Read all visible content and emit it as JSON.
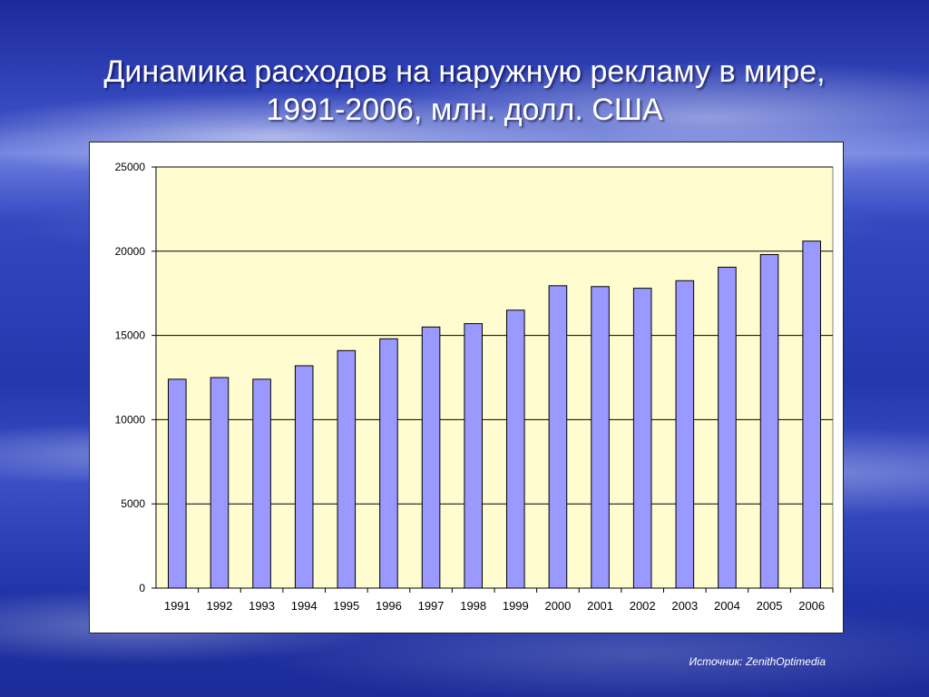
{
  "slide": {
    "title_line1": "Динамика расходов на наружную рекламу в мире,",
    "title_line2": "1991-2006, млн. долл. США",
    "source": "Источник: ZenithOptimedia"
  },
  "colors": {
    "plot_background": "#fffdd0",
    "bar_fill": "#9999ff",
    "bar_stroke": "#000000"
  },
  "chart_data": {
    "type": "bar",
    "title": "",
    "xlabel": "",
    "ylabel": "",
    "categories": [
      "1991",
      "1992",
      "1993",
      "1994",
      "1995",
      "1996",
      "1997",
      "1998",
      "1999",
      "2000",
      "2001",
      "2002",
      "2003",
      "2004",
      "2005",
      "2006"
    ],
    "values": [
      12400,
      12500,
      12400,
      13200,
      14100,
      14800,
      15500,
      15700,
      16500,
      17950,
      17900,
      17800,
      18250,
      19050,
      19800,
      20600
    ],
    "ylim": [
      0,
      25000
    ],
    "yticks": [
      0,
      5000,
      10000,
      15000,
      20000,
      25000
    ],
    "grid": true,
    "legend": "none"
  }
}
